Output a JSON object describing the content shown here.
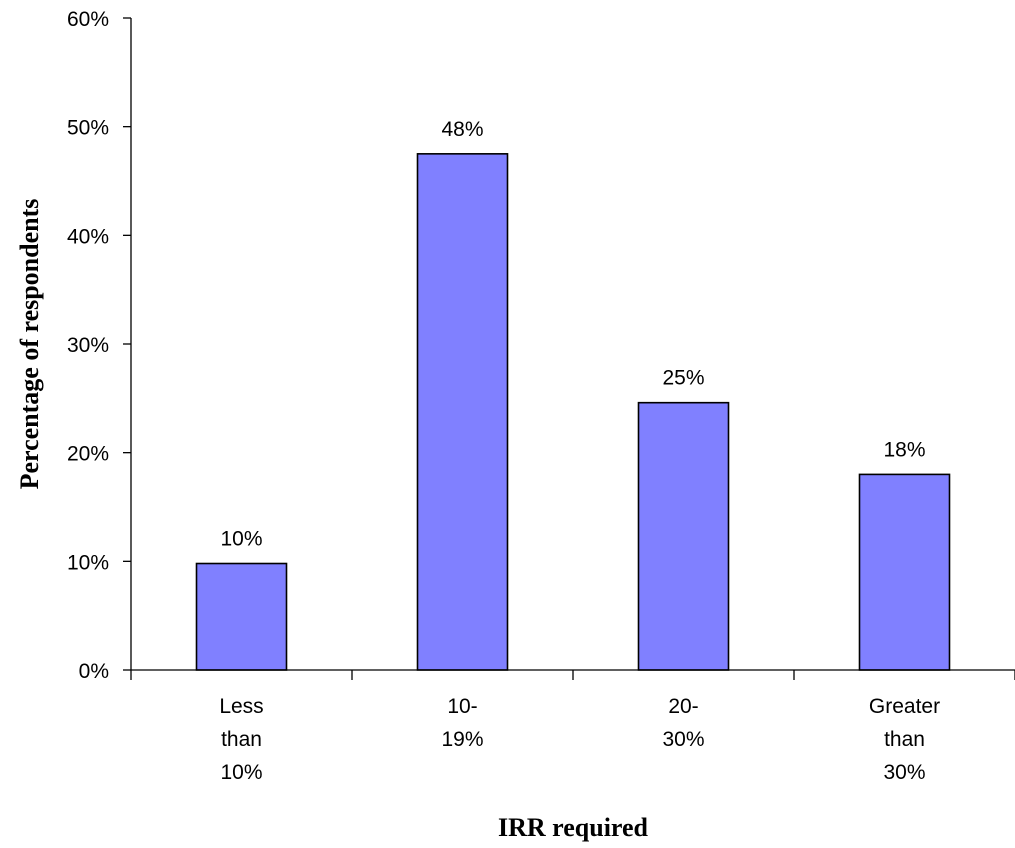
{
  "chart_data": {
    "type": "bar",
    "categories": [
      [
        "Less",
        "than",
        "10%"
      ],
      [
        "10-",
        "19%"
      ],
      [
        "20-",
        "30%"
      ],
      [
        "Greater",
        "than",
        "30%"
      ]
    ],
    "values": [
      10,
      48,
      25,
      18
    ],
    "data_labels": [
      "10%",
      "48%",
      "25%",
      "18%"
    ],
    "bar_values_exact": [
      9.8,
      47.5,
      24.6,
      18.0
    ],
    "xlabel": "IRR required",
    "ylabel": "Percentage of respondents",
    "ylim": [
      0,
      60
    ],
    "y_ticks": [
      0,
      10,
      20,
      30,
      40,
      50,
      60
    ],
    "y_tick_labels": [
      "0%",
      "10%",
      "20%",
      "30%",
      "40%",
      "50%",
      "60%"
    ],
    "bar_color": "#8080ff",
    "grid": false,
    "legend": "none"
  }
}
